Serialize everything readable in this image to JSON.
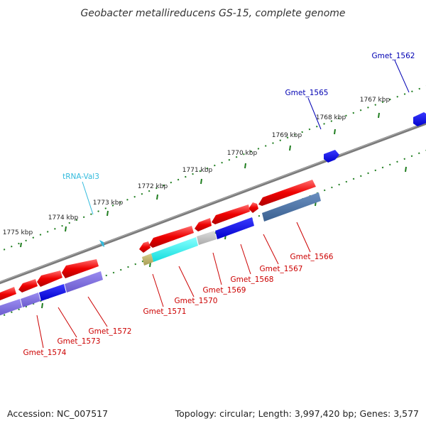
{
  "title": "Geobacter metallireducens GS-15, complete genome",
  "footer": {
    "accession": "Accession: NC_007517",
    "topology": "Topology: circular; Length: 3,997,420 bp; Genes: 3,577"
  },
  "colors": {
    "backbone": "#8a8a8a",
    "tick": "#1e7d1e",
    "gene_label": "#cc0000",
    "blue_label": "#0000b3",
    "trna_label": "#33bbdd"
  },
  "kbp_labels": [
    "1767 kbp",
    "1768 kbp",
    "1769 kbp",
    "1770 kbp",
    "1771 kbp",
    "1772 kbp",
    "1773 kbp",
    "1774 kbp",
    "1775 kbp"
  ],
  "gene_labels": [
    {
      "name": "Gmet_1562",
      "color": "#0000b3"
    },
    {
      "name": "Gmet_1565",
      "color": "#0000b3"
    },
    {
      "name": "tRNA-Val3",
      "color": "#33bbdd"
    },
    {
      "name": "Gmet_1566",
      "color": "#cc0000"
    },
    {
      "name": "Gmet_1567",
      "color": "#cc0000"
    },
    {
      "name": "Gmet_1568",
      "color": "#cc0000"
    },
    {
      "name": "Gmet_1569",
      "color": "#cc0000"
    },
    {
      "name": "Gmet_1570",
      "color": "#cc0000"
    },
    {
      "name": "Gmet_1571",
      "color": "#cc0000"
    },
    {
      "name": "Gmet_1572",
      "color": "#cc0000"
    },
    {
      "name": "Gmet_1573",
      "color": "#cc0000"
    },
    {
      "name": "Gmet_1574",
      "color": "#cc0000"
    }
  ]
}
